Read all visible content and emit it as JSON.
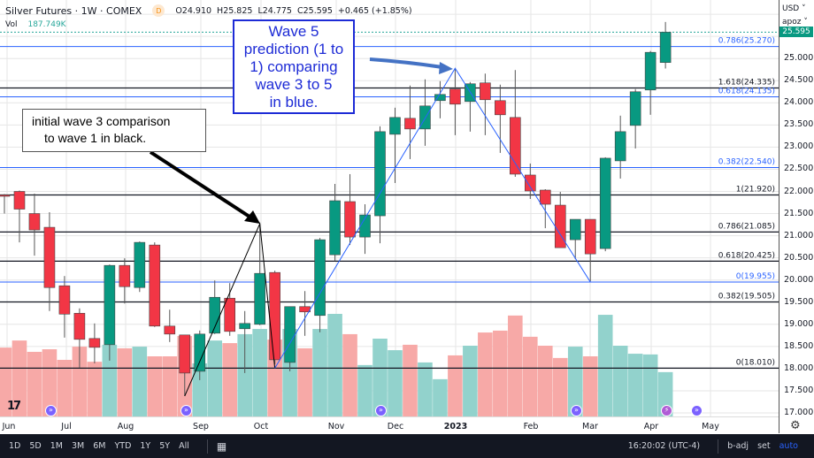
{
  "header": {
    "symbol": "Silver Futures · 1W · COMEX",
    "badge": "D",
    "open": "O24.910",
    "high": "H25.825",
    "low": "L24.775",
    "close": "C25.595",
    "change": "+0.465 (+1.85%)"
  },
  "volume": {
    "label": "Vol",
    "value": "187.749K"
  },
  "price_axis": {
    "currency": "USD",
    "mode": "apoz",
    "last_price": "25.595",
    "ticks": [
      "25.000",
      "24.500",
      "24.000",
      "23.500",
      "23.000",
      "22.500",
      "22.000",
      "21.500",
      "21.000",
      "20.500",
      "20.000",
      "19.500",
      "19.000",
      "18.500",
      "18.000",
      "17.500",
      "17.000"
    ]
  },
  "time_axis": [
    "Jun",
    "Jul",
    "Aug",
    "Sep",
    "Oct",
    "Nov",
    "Dec",
    "2023",
    "Feb",
    "Mar",
    "Apr",
    "May"
  ],
  "annotations": {
    "blue_box": [
      "Wave 5",
      "prediction (1 to",
      "1) comparing",
      "wave 3 to 5",
      "in blue."
    ],
    "black_box": [
      "initial wave 3 comparison",
      "to wave 1 in black."
    ]
  },
  "fib_levels": [
    {
      "label": "0.786(25.270)",
      "price": 25.27,
      "color": "#2962ff"
    },
    {
      "label": "1.618(24.335)",
      "price": 24.335,
      "color": "#131722"
    },
    {
      "label": "0.618(24.135)",
      "price": 24.135,
      "color": "#2962ff"
    },
    {
      "label": "0.382(22.540)",
      "price": 22.54,
      "color": "#2962ff"
    },
    {
      "label": "1(21.920)",
      "price": 21.92,
      "color": "#131722"
    },
    {
      "label": "0.786(21.085)",
      "price": 21.085,
      "color": "#131722"
    },
    {
      "label": "0.618(20.425)",
      "price": 20.425,
      "color": "#131722"
    },
    {
      "label": "0(19.955)",
      "price": 19.955,
      "color": "#2962ff"
    },
    {
      "label": "0.382(19.505)",
      "price": 19.505,
      "color": "#131722"
    },
    {
      "label": "0(18.010)",
      "price": 18.01,
      "color": "#131722"
    }
  ],
  "toolbar": {
    "ranges": [
      "1D",
      "5D",
      "1M",
      "3M",
      "6M",
      "YTD",
      "1Y",
      "5Y",
      "All"
    ],
    "time": "16:20:02 (UTC-4)",
    "badj": "b-adj",
    "set": "set",
    "auto": "auto"
  },
  "colors": {
    "up": "#089981",
    "down": "#f23645",
    "vol_up": "#92d2cc",
    "vol_down": "#f7a9a7",
    "accent": "#2962ff"
  },
  "chart_data": {
    "type": "candlestick",
    "title": "Silver Futures · 1W · COMEX",
    "ohlc": [
      [
        21.92,
        21.94,
        21.5,
        21.9
      ],
      [
        22.0,
        22.02,
        20.85,
        21.6
      ],
      [
        21.5,
        21.95,
        20.55,
        21.13
      ],
      [
        21.19,
        21.53,
        19.3,
        19.83
      ],
      [
        19.87,
        20.09,
        18.7,
        19.23
      ],
      [
        19.25,
        19.36,
        18.02,
        18.66
      ],
      [
        18.68,
        19.02,
        18.12,
        18.48
      ],
      [
        18.54,
        20.35,
        18.18,
        20.33
      ],
      [
        20.33,
        20.49,
        19.47,
        19.85
      ],
      [
        19.83,
        20.87,
        19.73,
        20.85
      ],
      [
        20.79,
        20.85,
        18.94,
        18.96
      ],
      [
        18.96,
        19.33,
        18.6,
        18.78
      ],
      [
        18.76,
        18.76,
        17.38,
        17.9
      ],
      [
        17.94,
        18.86,
        17.74,
        18.78
      ],
      [
        18.8,
        19.99,
        18.78,
        19.61
      ],
      [
        19.59,
        19.93,
        18.74,
        18.84
      ],
      [
        18.9,
        19.3,
        17.9,
        19.02
      ],
      [
        19.0,
        21.27,
        18.98,
        20.15
      ],
      [
        20.17,
        20.21,
        18.1,
        18.2
      ],
      [
        18.14,
        19.4,
        17.94,
        19.4
      ],
      [
        19.4,
        19.75,
        18.74,
        19.28
      ],
      [
        19.2,
        20.95,
        18.82,
        20.91
      ],
      [
        20.57,
        22.17,
        20.43,
        21.79
      ],
      [
        21.77,
        22.39,
        20.79,
        20.97
      ],
      [
        20.97,
        21.71,
        20.59,
        21.47
      ],
      [
        21.45,
        23.47,
        20.83,
        23.35
      ],
      [
        23.29,
        23.89,
        22.19,
        23.67
      ],
      [
        23.65,
        24.39,
        22.73,
        23.41
      ],
      [
        23.41,
        24.53,
        23.03,
        23.93
      ],
      [
        24.05,
        24.49,
        23.65,
        24.19
      ],
      [
        24.31,
        24.78,
        23.27,
        23.97
      ],
      [
        24.03,
        24.47,
        23.35,
        24.43
      ],
      [
        24.45,
        24.66,
        23.27,
        24.07
      ],
      [
        24.05,
        24.41,
        22.87,
        23.73
      ],
      [
        23.67,
        24.74,
        22.33,
        22.39
      ],
      [
        22.37,
        22.63,
        21.83,
        22.01
      ],
      [
        22.03,
        22.05,
        21.17,
        21.71
      ],
      [
        21.69,
        21.99,
        20.73,
        20.73
      ],
      [
        20.91,
        21.37,
        20.47,
        21.37
      ],
      [
        21.37,
        21.37,
        19.97,
        20.59
      ],
      [
        20.71,
        22.77,
        20.65,
        22.75
      ],
      [
        22.69,
        23.71,
        22.29,
        23.35
      ],
      [
        23.49,
        24.31,
        22.97,
        24.25
      ],
      [
        24.29,
        25.17,
        23.73,
        25.14
      ],
      [
        24.91,
        25.825,
        24.775,
        25.595
      ]
    ],
    "volume_k": [
      292,
      322,
      274,
      285,
      240,
      296,
      232,
      304,
      289,
      296,
      255,
      255,
      341,
      225,
      322,
      311,
      349,
      371,
      326,
      371,
      289,
      371,
      435,
      349,
      218,
      330,
      281,
      304,
      229,
      158,
      259,
      300,
      356,
      364,
      428,
      338,
      300,
      248,
      296,
      255,
      431,
      300,
      266,
      263,
      188
    ],
    "ylim": [
      16.9,
      26.2
    ],
    "wave_lines": {
      "black": [
        [
          12,
          17.38
        ],
        [
          17,
          21.27
        ],
        [
          18,
          18.01
        ]
      ],
      "blue": [
        [
          18,
          18.01
        ],
        [
          30,
          24.78
        ],
        [
          39,
          19.955
        ]
      ]
    }
  }
}
